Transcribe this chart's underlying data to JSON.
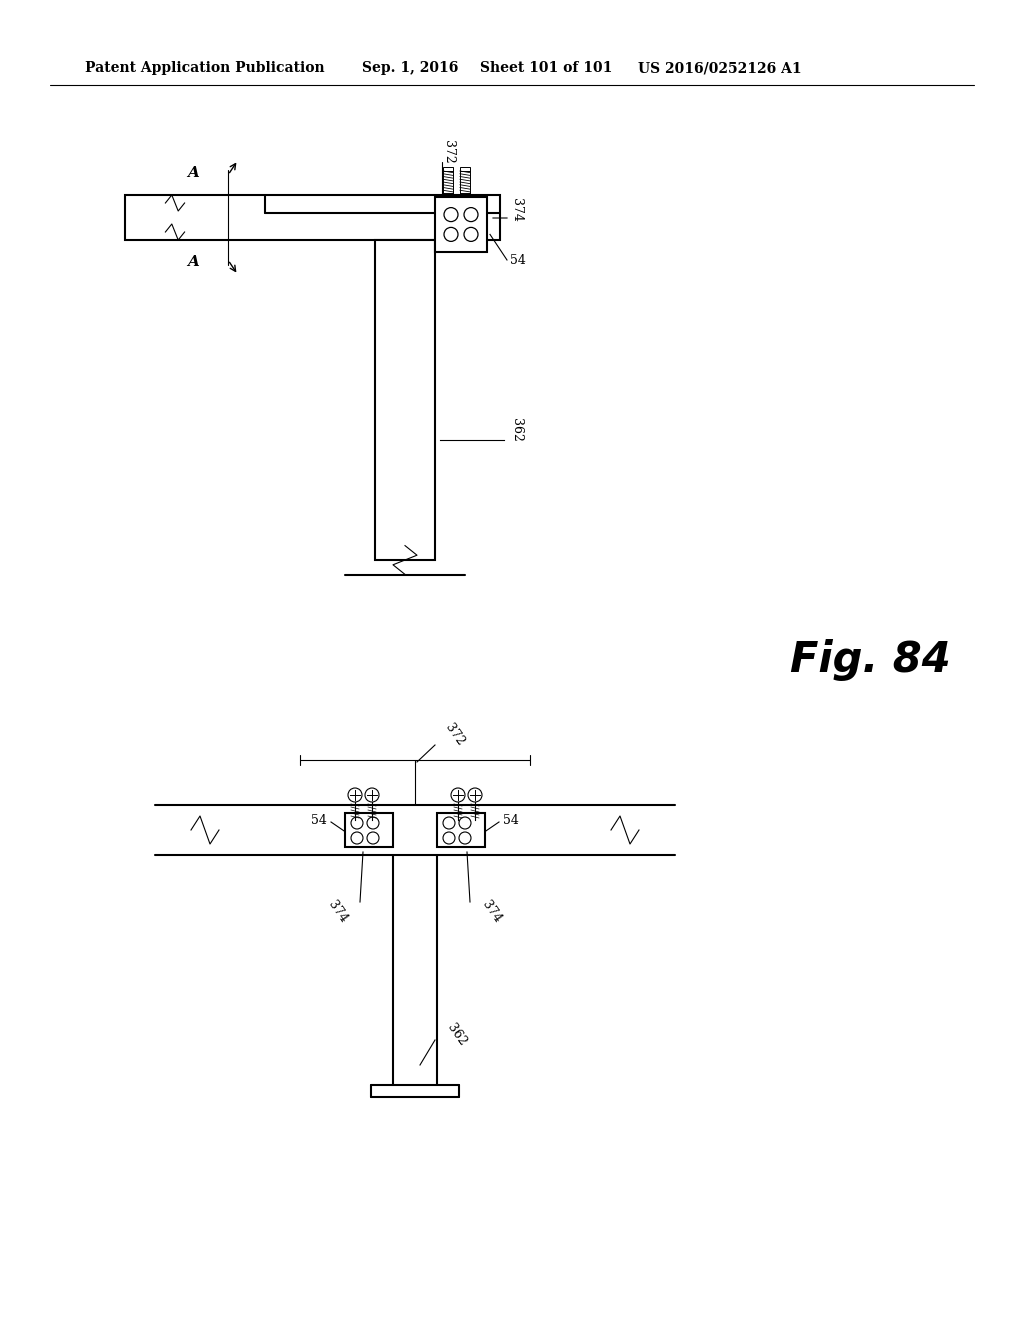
{
  "background_color": "#ffffff",
  "line_color": "#000000",
  "header_text": "Patent Application Publication",
  "header_date": "Sep. 1, 2016",
  "header_sheet": "Sheet 101 of 101",
  "header_patent": "US 2016/0252126 A1",
  "fig_label": "Fig. 84"
}
